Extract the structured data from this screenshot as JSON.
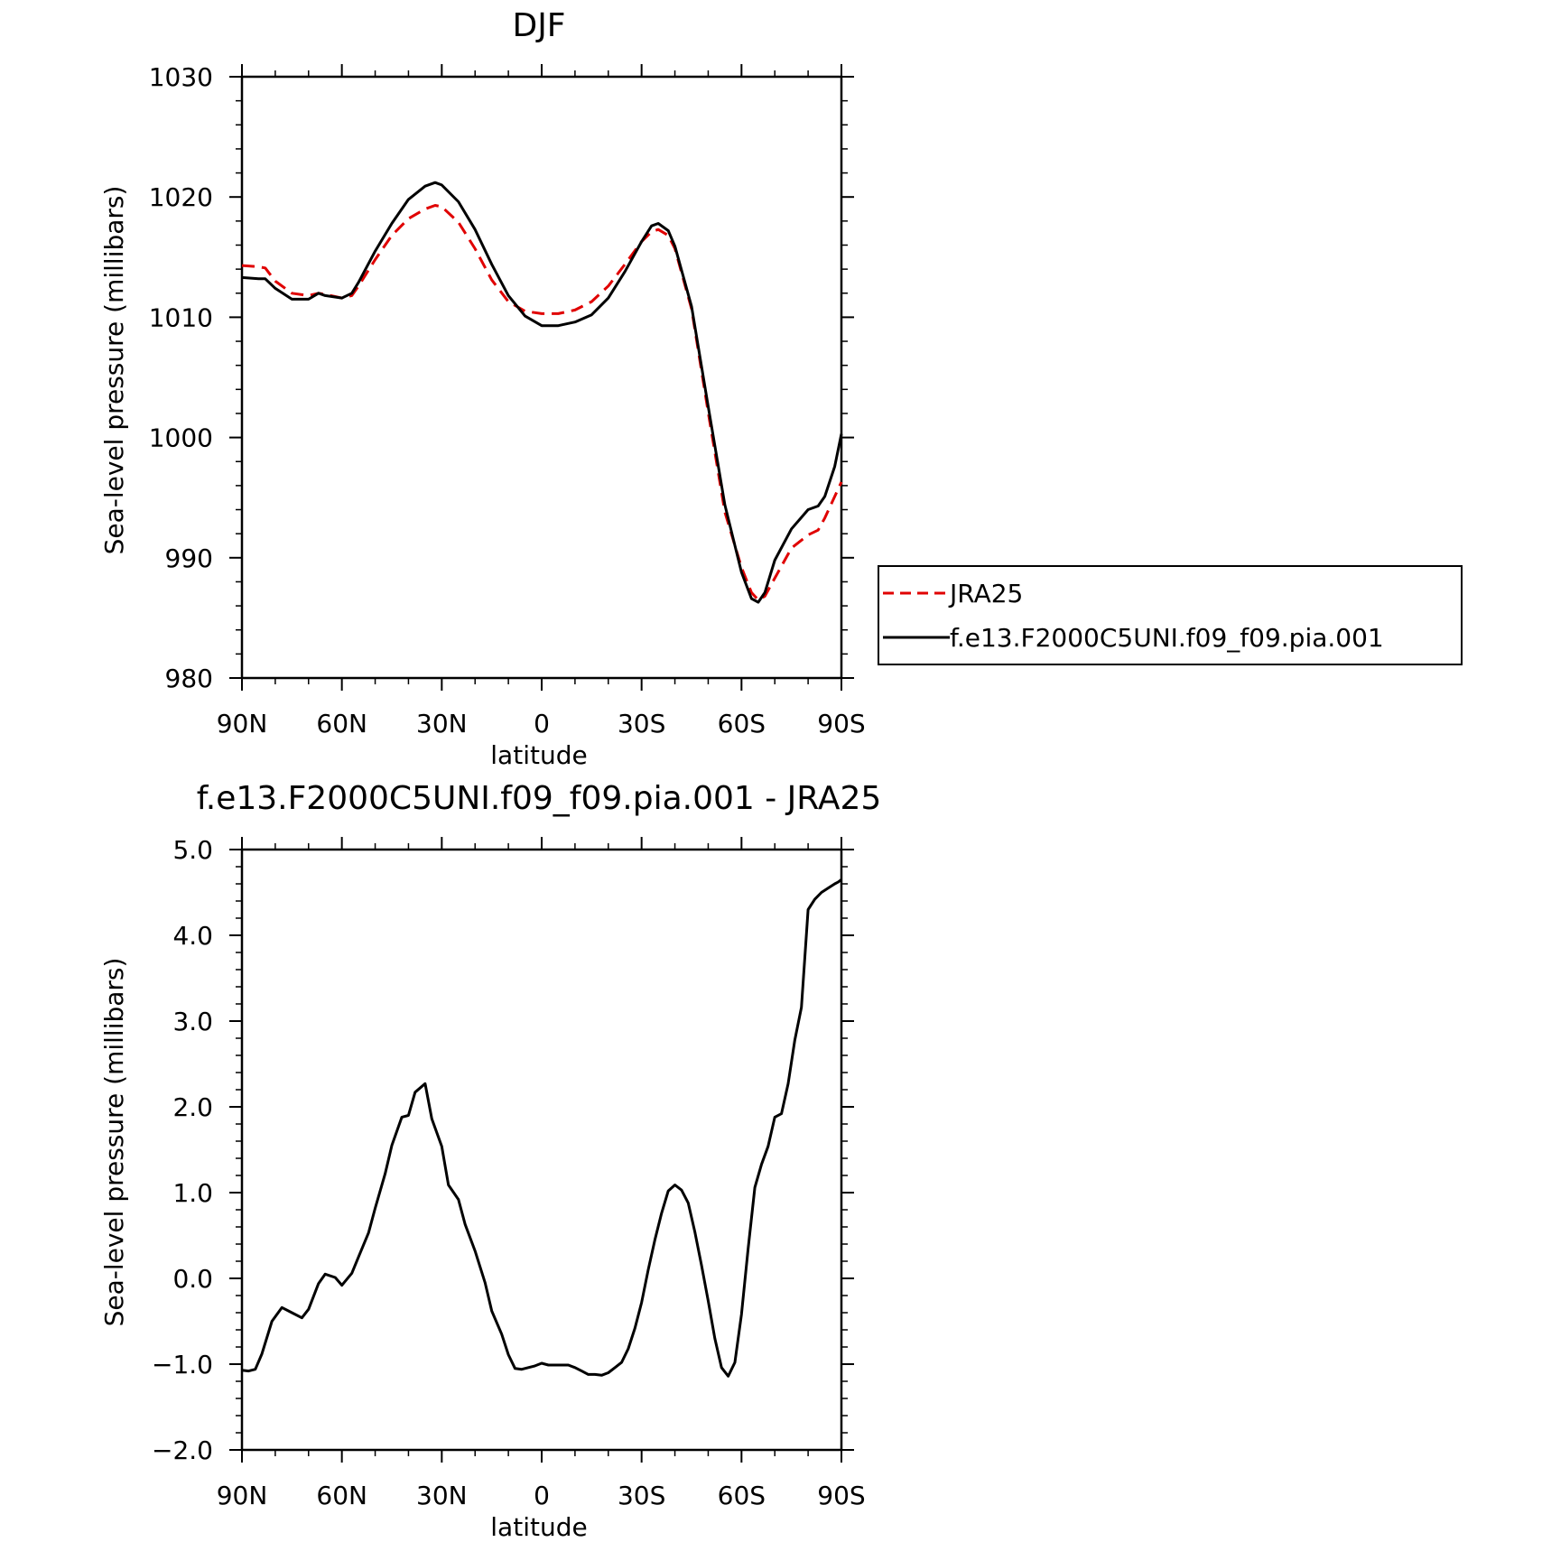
{
  "chart_data": [
    {
      "type": "line",
      "title": "DJF",
      "xlabel": "latitude",
      "ylabel": "Sea-level pressure (millibars)",
      "xlim": [
        90,
        -90
      ],
      "ylim": [
        980,
        1030
      ],
      "x_ticks": [
        90,
        60,
        30,
        0,
        -30,
        -60,
        -90
      ],
      "x_tick_labels": [
        "90N",
        "60N",
        "30N",
        "0",
        "30S",
        "60S",
        "90S"
      ],
      "y_ticks": [
        980,
        990,
        1000,
        1010,
        1020,
        1030
      ],
      "y_tick_labels": [
        "980",
        "990",
        "1000",
        "1010",
        "1020",
        "1030"
      ],
      "legend_position": "right",
      "series": [
        {
          "name": "JRA25",
          "color": "#e00000",
          "dash": "dashed",
          "x": [
            90,
            85,
            83,
            80,
            75,
            70,
            67,
            65,
            60,
            57,
            55,
            50,
            45,
            40,
            35,
            32,
            30,
            25,
            20,
            15,
            10,
            5,
            0,
            -5,
            -10,
            -15,
            -20,
            -25,
            -30,
            -33,
            -35,
            -38,
            -40,
            -45,
            -50,
            -55,
            -60,
            -63,
            -65,
            -67,
            -70,
            -75,
            -80,
            -83,
            -85,
            -88,
            -90
          ],
          "values": [
            1014.3,
            1014.2,
            1014.1,
            1013,
            1012,
            1011.8,
            1012,
            1011.9,
            1011.6,
            1011.8,
            1012.6,
            1014.8,
            1016.8,
            1018.2,
            1019,
            1019.3,
            1019.2,
            1017.9,
            1015.7,
            1013.1,
            1011.3,
            1010.5,
            1010.3,
            1010.3,
            1010.6,
            1011.3,
            1012.6,
            1014.4,
            1016.3,
            1017.1,
            1017.3,
            1016.8,
            1015.7,
            1010.7,
            1002.1,
            993.8,
            989.2,
            987.1,
            986.5,
            986.8,
            988.3,
            990.8,
            991.9,
            992.3,
            993.3,
            995.1,
            996.3
          ]
        },
        {
          "name": "f.e13.F2000C5UNI.f09_f09.pia.001",
          "color": "#000000",
          "dash": "solid",
          "x": [
            90,
            85,
            83,
            80,
            75,
            70,
            67,
            65,
            60,
            57,
            55,
            50,
            45,
            40,
            35,
            32,
            30,
            25,
            20,
            15,
            10,
            5,
            0,
            -5,
            -10,
            -15,
            -20,
            -25,
            -30,
            -33,
            -35,
            -38,
            -40,
            -45,
            -50,
            -55,
            -60,
            -63,
            -65,
            -67,
            -70,
            -75,
            -80,
            -83,
            -85,
            -88,
            -90
          ],
          "values": [
            1013.3,
            1013.2,
            1013.2,
            1012.4,
            1011.5,
            1011.5,
            1012,
            1011.8,
            1011.6,
            1012,
            1012.9,
            1015.5,
            1017.8,
            1019.8,
            1020.9,
            1021.2,
            1021,
            1019.6,
            1017.3,
            1014.4,
            1011.8,
            1010.1,
            1009.3,
            1009.3,
            1009.6,
            1010.2,
            1011.6,
            1013.8,
            1016.3,
            1017.6,
            1017.8,
            1017.2,
            1015.9,
            1010.9,
            1002.6,
            994.4,
            988.8,
            986.6,
            986.3,
            987.1,
            989.8,
            992.4,
            994,
            994.3,
            995.1,
            997.6,
            1000.3
          ]
        }
      ]
    },
    {
      "type": "line",
      "title": "f.e13.F2000C5UNI.f09_f09.pia.001 - JRA25",
      "xlabel": "latitude",
      "ylabel": "Sea-level pressure (millibars)",
      "xlim": [
        90,
        -90
      ],
      "ylim": [
        -2.0,
        5.0
      ],
      "x_ticks": [
        90,
        60,
        30,
        0,
        -30,
        -60,
        -90
      ],
      "x_tick_labels": [
        "90N",
        "60N",
        "30N",
        "0",
        "30S",
        "60S",
        "90S"
      ],
      "y_ticks": [
        -2,
        -1,
        0,
        1,
        2,
        3,
        4,
        5
      ],
      "y_tick_labels": [
        "−2.0",
        "−1.0",
        "0.0",
        "1.0",
        "2.0",
        "3.0",
        "4.0",
        "5.0"
      ],
      "series": [
        {
          "color": "#000000",
          "dash": "solid",
          "x": [
            90,
            88,
            86,
            84,
            81,
            78,
            75,
            72,
            70,
            67,
            65,
            62,
            60,
            57,
            55,
            52,
            50,
            47,
            45,
            42,
            40,
            38,
            35,
            33,
            30,
            28,
            25,
            23,
            20,
            17,
            15,
            12,
            10,
            8,
            6,
            4,
            2,
            0,
            -2,
            -4,
            -6,
            -8,
            -10,
            -12,
            -14,
            -16,
            -18,
            -20,
            -22,
            -24,
            -26,
            -28,
            -30,
            -32,
            -34,
            -36,
            -38,
            -40,
            -42,
            -44,
            -46,
            -48,
            -50,
            -52,
            -54,
            -56,
            -58,
            -60,
            -62,
            -64,
            -66,
            -68,
            -70,
            -72,
            -74,
            -76,
            -78,
            -80,
            -82,
            -84,
            -86,
            -88,
            -89,
            -90
          ],
          "values": [
            -1.07,
            -1.08,
            -1.06,
            -0.88,
            -0.5,
            -0.34,
            -0.4,
            -0.46,
            -0.36,
            -0.06,
            0.05,
            0.01,
            -0.08,
            0.06,
            0.25,
            0.53,
            0.82,
            1.22,
            1.55,
            1.88,
            1.9,
            2.17,
            2.27,
            1.86,
            1.54,
            1.09,
            0.92,
            0.63,
            0.32,
            -0.05,
            -0.38,
            -0.65,
            -0.89,
            -1.05,
            -1.06,
            -1.04,
            -1.02,
            -0.99,
            -1.01,
            -1.01,
            -1.01,
            -1.01,
            -1.04,
            -1.08,
            -1.12,
            -1.12,
            -1.13,
            -1.1,
            -1.04,
            -0.98,
            -0.82,
            -0.58,
            -0.28,
            0.1,
            0.45,
            0.76,
            1.02,
            1.09,
            1.03,
            0.88,
            0.54,
            0.15,
            -0.26,
            -0.7,
            -1.04,
            -1.14,
            -0.98,
            -0.42,
            0.35,
            1.06,
            1.33,
            1.54,
            1.88,
            1.92,
            2.27,
            2.78,
            3.16,
            4.3,
            4.42,
            4.5,
            4.55,
            4.6,
            4.62,
            4.65
          ]
        }
      ]
    }
  ]
}
